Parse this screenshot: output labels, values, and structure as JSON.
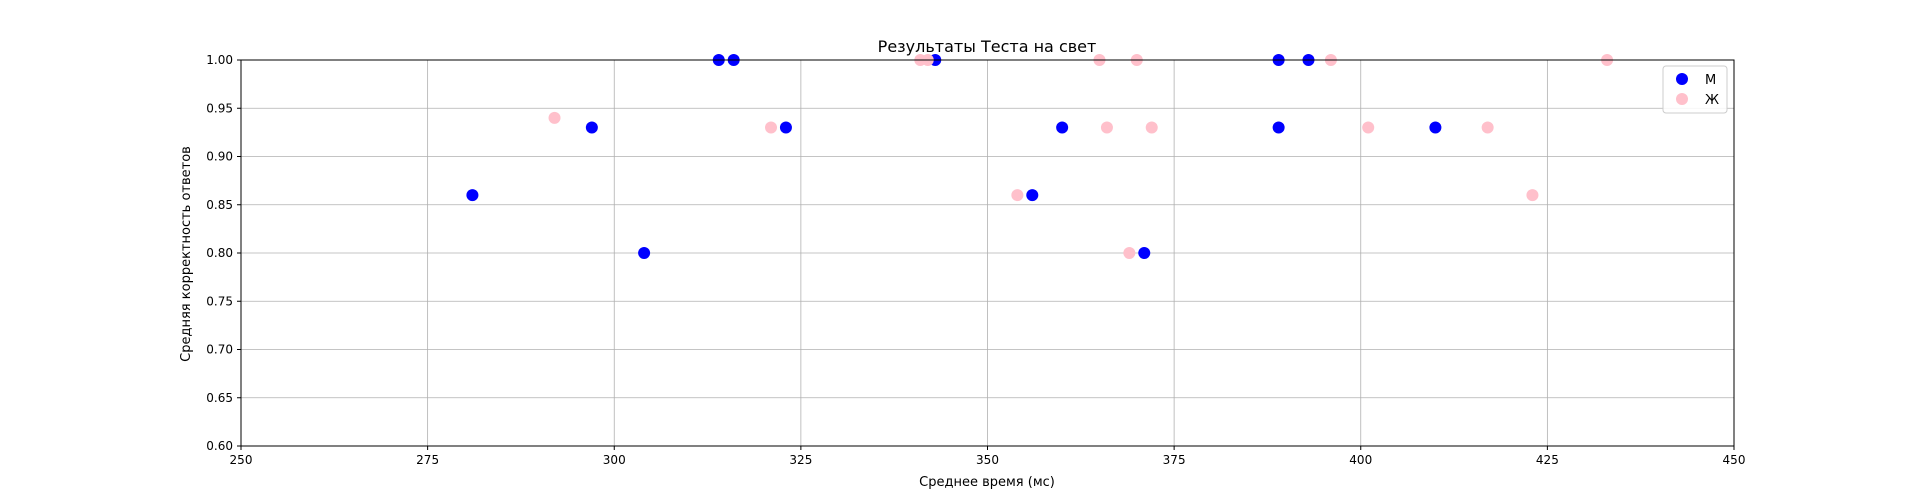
{
  "chart_data": {
    "type": "scatter",
    "title": "Результаты Теста на свет",
    "xlabel": "Среднее время (мс)",
    "ylabel": "Средняя корректность ответов",
    "xlim": [
      250,
      450
    ],
    "ylim": [
      0.6,
      1.0
    ],
    "xticks": [
      "250",
      "275",
      "300",
      "325",
      "350",
      "375",
      "400",
      "425",
      "450"
    ],
    "yticks": [
      "0.60",
      "0.65",
      "0.70",
      "0.75",
      "0.80",
      "0.85",
      "0.90",
      "0.95",
      "1.00"
    ],
    "grid": true,
    "legend_position": "top-right",
    "series": [
      {
        "name": "М",
        "color": "#0000ff",
        "points": [
          {
            "x": 281,
            "y": 0.86
          },
          {
            "x": 297,
            "y": 0.93
          },
          {
            "x": 304,
            "y": 0.8
          },
          {
            "x": 314,
            "y": 1.0
          },
          {
            "x": 316,
            "y": 1.0
          },
          {
            "x": 323,
            "y": 0.93
          },
          {
            "x": 343,
            "y": 1.0
          },
          {
            "x": 356,
            "y": 0.86
          },
          {
            "x": 360,
            "y": 0.93
          },
          {
            "x": 371,
            "y": 0.8
          },
          {
            "x": 389,
            "y": 1.0
          },
          {
            "x": 389,
            "y": 0.93
          },
          {
            "x": 393,
            "y": 1.0
          },
          {
            "x": 410,
            "y": 0.93
          }
        ]
      },
      {
        "name": "Ж",
        "color": "#ffc0cb",
        "points": [
          {
            "x": 292,
            "y": 0.94
          },
          {
            "x": 321,
            "y": 0.93
          },
          {
            "x": 341,
            "y": 1.0
          },
          {
            "x": 342,
            "y": 1.0
          },
          {
            "x": 354,
            "y": 0.86
          },
          {
            "x": 365,
            "y": 1.0
          },
          {
            "x": 366,
            "y": 0.93
          },
          {
            "x": 369,
            "y": 0.8
          },
          {
            "x": 370,
            "y": 1.0
          },
          {
            "x": 372,
            "y": 0.93
          },
          {
            "x": 396,
            "y": 1.0
          },
          {
            "x": 401,
            "y": 0.93
          },
          {
            "x": 417,
            "y": 0.93
          },
          {
            "x": 423,
            "y": 0.86
          },
          {
            "x": 433,
            "y": 1.0
          }
        ]
      }
    ]
  }
}
